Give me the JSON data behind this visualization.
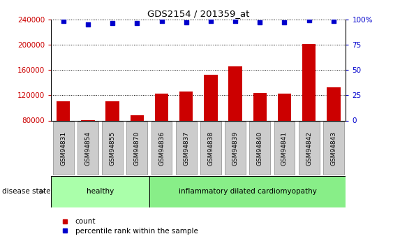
{
  "title": "GDS2154 / 201359_at",
  "samples": [
    "GSM94831",
    "GSM94854",
    "GSM94855",
    "GSM94870",
    "GSM94836",
    "GSM94837",
    "GSM94838",
    "GSM94839",
    "GSM94840",
    "GSM94841",
    "GSM94842",
    "GSM94843"
  ],
  "counts": [
    110000,
    80500,
    110000,
    88000,
    122000,
    126000,
    152000,
    166000,
    124000,
    122000,
    201000,
    133000
  ],
  "percentile_ranks": [
    98,
    95,
    96,
    96,
    98,
    97,
    98,
    98,
    97,
    97,
    99,
    98
  ],
  "bar_color": "#cc0000",
  "dot_color": "#0000cc",
  "ylim_left": [
    80000,
    240000
  ],
  "ylim_right": [
    0,
    100
  ],
  "yticks_left": [
    80000,
    120000,
    160000,
    200000,
    240000
  ],
  "yticks_right": [
    0,
    25,
    50,
    75,
    100
  ],
  "groups": [
    {
      "label": "healthy",
      "start": 0,
      "end": 4,
      "color": "#aaffaa"
    },
    {
      "label": "inflammatory dilated cardiomyopathy",
      "start": 4,
      "end": 12,
      "color": "#88ee88"
    }
  ],
  "disease_state_label": "disease state",
  "legend_count_label": "count",
  "legend_pct_label": "percentile rank within the sample",
  "background_color": "#ffffff",
  "bar_left_color": "#cc0000",
  "ylabel_right_color": "#0000cc",
  "tick_label_bg": "#cccccc",
  "tick_label_border": "#888888"
}
